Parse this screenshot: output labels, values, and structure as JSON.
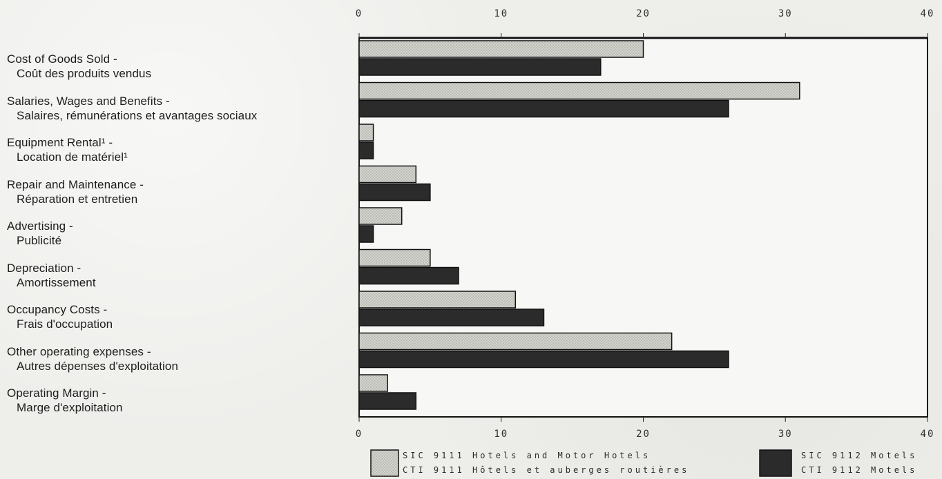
{
  "chart_data": {
    "type": "bar",
    "orientation": "horizontal",
    "categories": [
      {
        "en": "Cost of Goods Sold -",
        "fr": "Coût des produits vendus"
      },
      {
        "en": "Salaries, Wages and Benefits -",
        "fr": "Salaires, rémunérations et avantages sociaux"
      },
      {
        "en": "Equipment Rental¹ -",
        "fr": "Location de matériel¹"
      },
      {
        "en": "Repair and Maintenance -",
        "fr": "Réparation et entretien"
      },
      {
        "en": "Advertising -",
        "fr": "Publicité"
      },
      {
        "en": "Depreciation -",
        "fr": "Amortissement"
      },
      {
        "en": "Occupancy Costs -",
        "fr": "Frais d'occupation"
      },
      {
        "en": "Other operating expenses -",
        "fr": "Autres dépenses d'exploitation"
      },
      {
        "en": "Operating Margin -",
        "fr": "Marge d'exploitation"
      }
    ],
    "series": [
      {
        "name_en": "SIC 9111 Hotels and Motor Hotels",
        "name_fr": "CTI 9111 Hôtels et auberges routières",
        "color": "#c8c8c2",
        "values": [
          20,
          31,
          1,
          4,
          3,
          5,
          11,
          22,
          2
        ]
      },
      {
        "name_en": "SIC 9112 Motels",
        "name_fr": "CTI 9112 Motels",
        "color": "#2b2b2b",
        "values": [
          17,
          26,
          1,
          5,
          1,
          7,
          13,
          26,
          4
        ]
      }
    ],
    "xlim": [
      0,
      40
    ],
    "ticks_top": [
      "0",
      "10",
      "20",
      "30",
      "40"
    ],
    "ticks_bottom": [
      "0",
      "10",
      "20",
      "30",
      "40"
    ],
    "grid": false,
    "legend_position": "bottom"
  }
}
